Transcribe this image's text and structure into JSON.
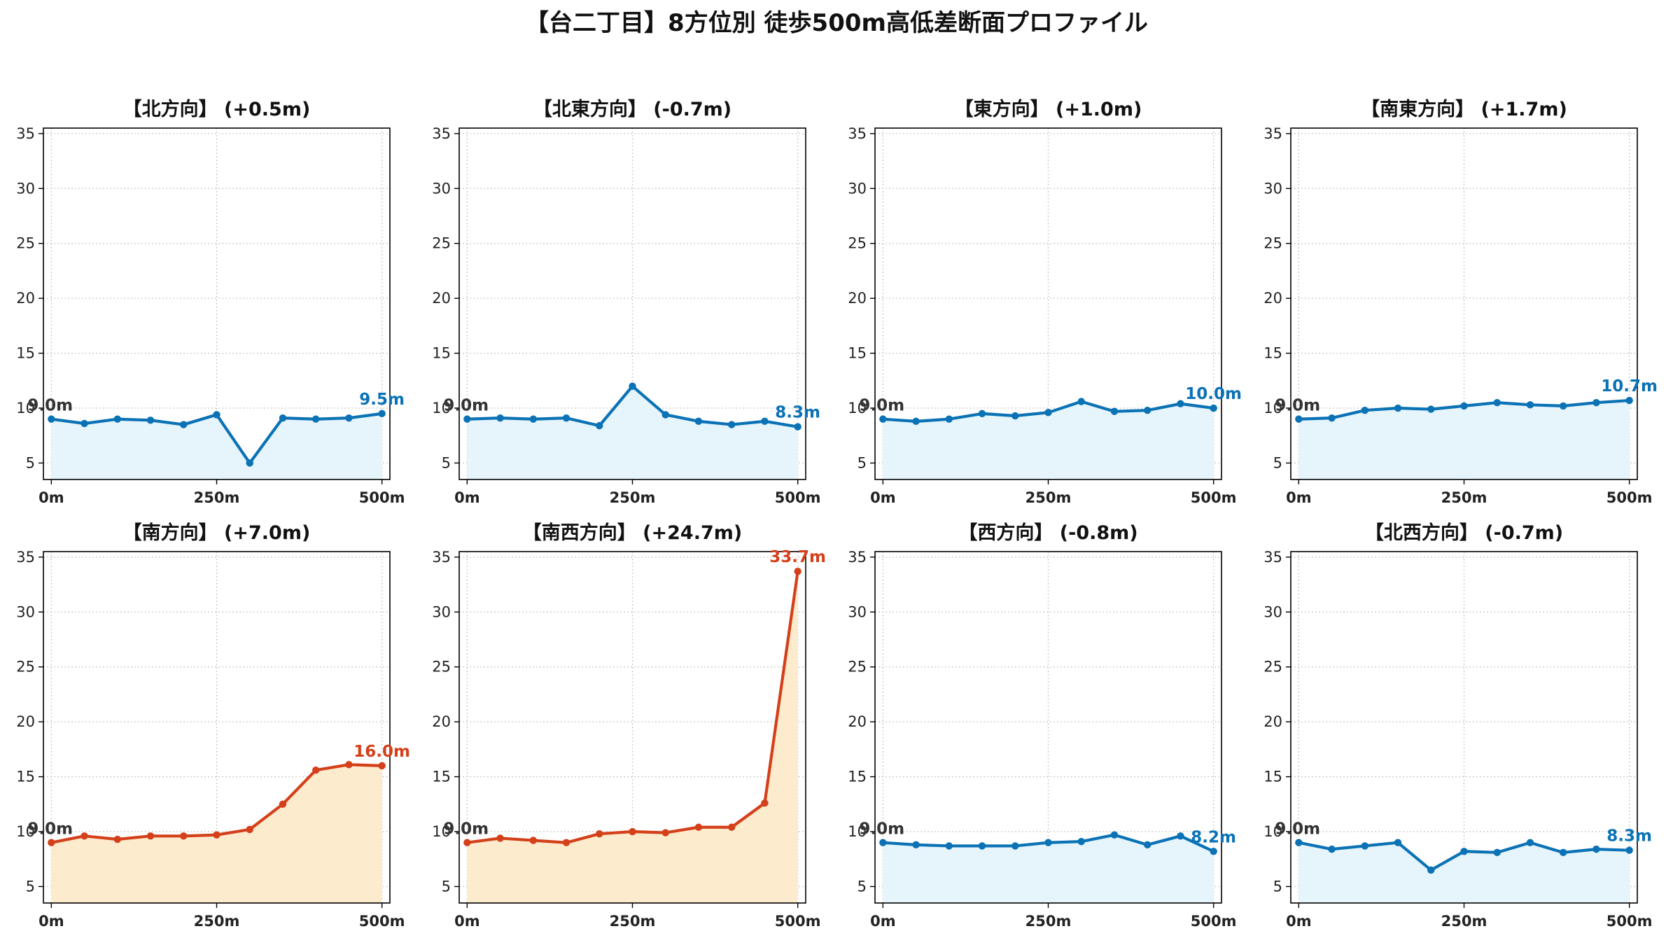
{
  "title": "【台二丁目】8方位別 徒歩500m高低差断面プロファイル",
  "colors": {
    "flat_line": "#0a72b5",
    "flat_fill": "#e6f4fb",
    "steep_line": "#d4401a",
    "steep_fill": "#fdebcd",
    "start_label": "#333333",
    "grid": "#c8c8c8"
  },
  "chart_data": [
    {
      "type": "line",
      "title": "【北方向】 (+0.5m)",
      "x": [
        0,
        50,
        100,
        150,
        200,
        250,
        300,
        350,
        400,
        450,
        500
      ],
      "y": [
        9.0,
        8.6,
        9.0,
        8.9,
        8.5,
        9.4,
        5.0,
        9.1,
        9.0,
        9.1,
        9.5
      ],
      "start_label": "9.0m",
      "end_label": "9.5m",
      "style": "flat",
      "x_ticks": [
        "0m",
        "250m",
        "500m"
      ],
      "y_ticks": [
        "5",
        "10",
        "15",
        "20",
        "25",
        "30",
        "35"
      ],
      "ylim": [
        3.5,
        35.5
      ],
      "xlim": [
        -12,
        512
      ],
      "grid": true
    },
    {
      "type": "line",
      "title": "【北東方向】 (-0.7m)",
      "x": [
        0,
        50,
        100,
        150,
        200,
        250,
        300,
        350,
        400,
        450,
        500
      ],
      "y": [
        9.0,
        9.1,
        9.0,
        9.1,
        8.4,
        12.0,
        9.4,
        8.8,
        8.5,
        8.8,
        8.3
      ],
      "start_label": "9.0m",
      "end_label": "8.3m",
      "style": "flat",
      "x_ticks": [
        "0m",
        "250m",
        "500m"
      ],
      "y_ticks": [
        "5",
        "10",
        "15",
        "20",
        "25",
        "30",
        "35"
      ],
      "ylim": [
        3.5,
        35.5
      ],
      "xlim": [
        -12,
        512
      ],
      "grid": true
    },
    {
      "type": "line",
      "title": "【東方向】 (+1.0m)",
      "x": [
        0,
        50,
        100,
        150,
        200,
        250,
        300,
        350,
        400,
        450,
        500
      ],
      "y": [
        9.0,
        8.8,
        9.0,
        9.5,
        9.3,
        9.6,
        10.6,
        9.7,
        9.8,
        10.4,
        10.0
      ],
      "start_label": "9.0m",
      "end_label": "10.0m",
      "style": "flat",
      "x_ticks": [
        "0m",
        "250m",
        "500m"
      ],
      "y_ticks": [
        "5",
        "10",
        "15",
        "20",
        "25",
        "30",
        "35"
      ],
      "ylim": [
        3.5,
        35.5
      ],
      "xlim": [
        -12,
        512
      ],
      "grid": true
    },
    {
      "type": "line",
      "title": "【南東方向】 (+1.7m)",
      "x": [
        0,
        50,
        100,
        150,
        200,
        250,
        300,
        350,
        400,
        450,
        500
      ],
      "y": [
        9.0,
        9.1,
        9.8,
        10.0,
        9.9,
        10.2,
        10.5,
        10.3,
        10.2,
        10.5,
        10.7
      ],
      "start_label": "9.0m",
      "end_label": "10.7m",
      "style": "flat",
      "x_ticks": [
        "0m",
        "250m",
        "500m"
      ],
      "y_ticks": [
        "5",
        "10",
        "15",
        "20",
        "25",
        "30",
        "35"
      ],
      "ylim": [
        3.5,
        35.5
      ],
      "xlim": [
        -12,
        512
      ],
      "grid": true
    },
    {
      "type": "line",
      "title": "【南方向】 (+7.0m)",
      "x": [
        0,
        50,
        100,
        150,
        200,
        250,
        300,
        350,
        400,
        450,
        500
      ],
      "y": [
        9.0,
        9.6,
        9.3,
        9.6,
        9.6,
        9.7,
        10.2,
        12.5,
        15.6,
        16.1,
        16.0
      ],
      "start_label": "9.0m",
      "end_label": "16.0m",
      "style": "steep",
      "x_ticks": [
        "0m",
        "250m",
        "500m"
      ],
      "y_ticks": [
        "5",
        "10",
        "15",
        "20",
        "25",
        "30",
        "35"
      ],
      "ylim": [
        3.5,
        35.5
      ],
      "xlim": [
        -12,
        512
      ],
      "grid": true
    },
    {
      "type": "line",
      "title": "【南西方向】 (+24.7m)",
      "x": [
        0,
        50,
        100,
        150,
        200,
        250,
        300,
        350,
        400,
        450,
        500
      ],
      "y": [
        9.0,
        9.4,
        9.2,
        9.0,
        9.8,
        10.0,
        9.9,
        10.4,
        10.4,
        12.6,
        33.7
      ],
      "start_label": "9.0m",
      "end_label": "33.7m",
      "style": "steep",
      "x_ticks": [
        "0m",
        "250m",
        "500m"
      ],
      "y_ticks": [
        "5",
        "10",
        "15",
        "20",
        "25",
        "30",
        "35"
      ],
      "ylim": [
        3.5,
        35.5
      ],
      "xlim": [
        -12,
        512
      ],
      "grid": true
    },
    {
      "type": "line",
      "title": "【西方向】 (-0.8m)",
      "x": [
        0,
        50,
        100,
        150,
        200,
        250,
        300,
        350,
        400,
        450,
        500
      ],
      "y": [
        9.0,
        8.8,
        8.7,
        8.7,
        8.7,
        9.0,
        9.1,
        9.7,
        8.8,
        9.6,
        8.2
      ],
      "start_label": "9.0m",
      "end_label": "8.2m",
      "style": "flat",
      "x_ticks": [
        "0m",
        "250m",
        "500m"
      ],
      "y_ticks": [
        "5",
        "10",
        "15",
        "20",
        "25",
        "30",
        "35"
      ],
      "ylim": [
        3.5,
        35.5
      ],
      "xlim": [
        -12,
        512
      ],
      "grid": true
    },
    {
      "type": "line",
      "title": "【北西方向】 (-0.7m)",
      "x": [
        0,
        50,
        100,
        150,
        200,
        250,
        300,
        350,
        400,
        450,
        500
      ],
      "y": [
        9.0,
        8.4,
        8.7,
        9.0,
        6.5,
        8.2,
        8.1,
        9.0,
        8.1,
        8.4,
        8.3
      ],
      "start_label": "9.0m",
      "end_label": "8.3m",
      "style": "steep_none_flat",
      "x_ticks": [
        "0m",
        "250m",
        "500m"
      ],
      "y_ticks": [
        "5",
        "10",
        "15",
        "20",
        "25",
        "30",
        "35"
      ],
      "ylim": [
        3.5,
        35.5
      ],
      "xlim": [
        -12,
        512
      ],
      "grid": true
    }
  ]
}
